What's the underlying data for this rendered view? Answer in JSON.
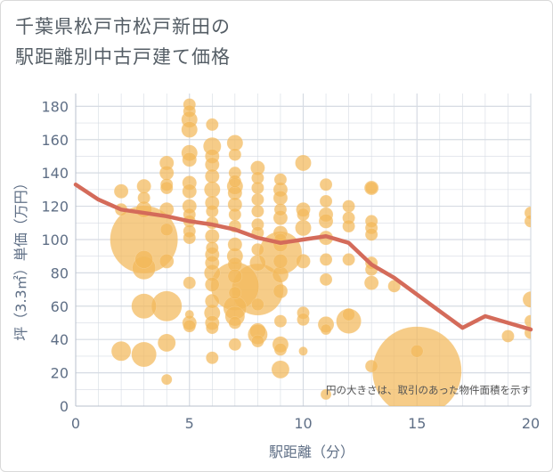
{
  "title": {
    "line1": "千葉県松戸市松戸新田の",
    "line2": "駅距離別中古戸建て価格"
  },
  "note": "円の大きさは、取引のあった物件面積を示す",
  "colors": {
    "bubble": "#f2b95a",
    "line": "#d46b5a",
    "grid": "#d6dbe3",
    "axis_text": "#5f6f86"
  },
  "chart_data": {
    "type": "scatter",
    "xlabel": "駅距離（分）",
    "ylabel": "坪（3.3㎡）単価（万円）",
    "xlim": [
      0,
      20
    ],
    "ylim": [
      0,
      185
    ],
    "xticks": [
      0,
      5,
      10,
      15,
      20
    ],
    "yticks": [
      0,
      20,
      40,
      60,
      80,
      100,
      120,
      140,
      160,
      180
    ],
    "grid": true,
    "series": [
      {
        "type": "bubble",
        "points": [
          {
            "x": 2,
            "y": 129,
            "r": 8
          },
          {
            "x": 2,
            "y": 118,
            "r": 7
          },
          {
            "x": 2,
            "y": 33,
            "r": 11
          },
          {
            "x": 3,
            "y": 132,
            "r": 8
          },
          {
            "x": 3,
            "y": 125,
            "r": 7
          },
          {
            "x": 3,
            "y": 118,
            "r": 9
          },
          {
            "x": 3,
            "y": 100,
            "r": 38
          },
          {
            "x": 3,
            "y": 88,
            "r": 10
          },
          {
            "x": 3,
            "y": 83,
            "r": 13
          },
          {
            "x": 3,
            "y": 60,
            "r": 14
          },
          {
            "x": 3,
            "y": 31,
            "r": 14
          },
          {
            "x": 4,
            "y": 146,
            "r": 8
          },
          {
            "x": 4,
            "y": 140,
            "r": 8
          },
          {
            "x": 4,
            "y": 133,
            "r": 7
          },
          {
            "x": 4,
            "y": 131,
            "r": 7
          },
          {
            "x": 4,
            "y": 118,
            "r": 8
          },
          {
            "x": 4,
            "y": 106,
            "r": 7
          },
          {
            "x": 4,
            "y": 87,
            "r": 8
          },
          {
            "x": 4,
            "y": 60,
            "r": 17
          },
          {
            "x": 4,
            "y": 38,
            "r": 10
          },
          {
            "x": 4,
            "y": 16,
            "r": 6
          },
          {
            "x": 5,
            "y": 181,
            "r": 7
          },
          {
            "x": 5,
            "y": 177,
            "r": 7
          },
          {
            "x": 5,
            "y": 172,
            "r": 9
          },
          {
            "x": 5,
            "y": 166,
            "r": 9
          },
          {
            "x": 5,
            "y": 152,
            "r": 9
          },
          {
            "x": 5,
            "y": 148,
            "r": 8
          },
          {
            "x": 5,
            "y": 134,
            "r": 8
          },
          {
            "x": 5,
            "y": 129,
            "r": 8
          },
          {
            "x": 5,
            "y": 120,
            "r": 8
          },
          {
            "x": 5,
            "y": 115,
            "r": 7
          },
          {
            "x": 5,
            "y": 111,
            "r": 7
          },
          {
            "x": 5,
            "y": 105,
            "r": 7
          },
          {
            "x": 5,
            "y": 101,
            "r": 7
          },
          {
            "x": 5,
            "y": 74,
            "r": 7
          },
          {
            "x": 5,
            "y": 55,
            "r": 5
          },
          {
            "x": 5,
            "y": 50,
            "r": 8
          },
          {
            "x": 5,
            "y": 48,
            "r": 7
          },
          {
            "x": 6,
            "y": 169,
            "r": 7
          },
          {
            "x": 6,
            "y": 156,
            "r": 10
          },
          {
            "x": 6,
            "y": 150,
            "r": 8
          },
          {
            "x": 6,
            "y": 145,
            "r": 8
          },
          {
            "x": 6,
            "y": 138,
            "r": 8
          },
          {
            "x": 6,
            "y": 130,
            "r": 9
          },
          {
            "x": 6,
            "y": 122,
            "r": 8
          },
          {
            "x": 6,
            "y": 117,
            "r": 7
          },
          {
            "x": 6,
            "y": 110,
            "r": 7
          },
          {
            "x": 6,
            "y": 102,
            "r": 8
          },
          {
            "x": 6,
            "y": 95,
            "r": 7
          },
          {
            "x": 6,
            "y": 91,
            "r": 8
          },
          {
            "x": 6,
            "y": 86,
            "r": 8
          },
          {
            "x": 6,
            "y": 80,
            "r": 9
          },
          {
            "x": 6,
            "y": 73,
            "r": 8
          },
          {
            "x": 6,
            "y": 63,
            "r": 8
          },
          {
            "x": 6,
            "y": 56,
            "r": 9
          },
          {
            "x": 6,
            "y": 50,
            "r": 8
          },
          {
            "x": 6,
            "y": 47,
            "r": 7
          },
          {
            "x": 6,
            "y": 29,
            "r": 7
          },
          {
            "x": 7,
            "y": 158,
            "r": 9
          },
          {
            "x": 7,
            "y": 151,
            "r": 7
          },
          {
            "x": 7,
            "y": 140,
            "r": 7
          },
          {
            "x": 7,
            "y": 135,
            "r": 7
          },
          {
            "x": 7,
            "y": 132,
            "r": 9
          },
          {
            "x": 7,
            "y": 128,
            "r": 8
          },
          {
            "x": 7,
            "y": 121,
            "r": 8
          },
          {
            "x": 7,
            "y": 115,
            "r": 7
          },
          {
            "x": 7,
            "y": 108,
            "r": 7
          },
          {
            "x": 7,
            "y": 97,
            "r": 8
          },
          {
            "x": 7,
            "y": 90,
            "r": 9
          },
          {
            "x": 7,
            "y": 85,
            "r": 8
          },
          {
            "x": 7,
            "y": 78,
            "r": 8
          },
          {
            "x": 7,
            "y": 72,
            "r": 27
          },
          {
            "x": 7,
            "y": 68,
            "r": 7
          },
          {
            "x": 7,
            "y": 59,
            "r": 13
          },
          {
            "x": 7,
            "y": 54,
            "r": 11
          },
          {
            "x": 7,
            "y": 50,
            "r": 7
          },
          {
            "x": 7,
            "y": 37,
            "r": 7
          },
          {
            "x": 8,
            "y": 143,
            "r": 8
          },
          {
            "x": 8,
            "y": 137,
            "r": 7
          },
          {
            "x": 8,
            "y": 131,
            "r": 7
          },
          {
            "x": 8,
            "y": 124,
            "r": 7
          },
          {
            "x": 8,
            "y": 117,
            "r": 7
          },
          {
            "x": 8,
            "y": 109,
            "r": 7
          },
          {
            "x": 8,
            "y": 104,
            "r": 7
          },
          {
            "x": 8,
            "y": 94,
            "r": 7
          },
          {
            "x": 8,
            "y": 86,
            "r": 9
          },
          {
            "x": 8,
            "y": 70,
            "r": 29
          },
          {
            "x": 8,
            "y": 61,
            "r": 7
          },
          {
            "x": 8,
            "y": 45,
            "r": 9
          },
          {
            "x": 8,
            "y": 43,
            "r": 11
          },
          {
            "x": 8,
            "y": 39,
            "r": 7
          },
          {
            "x": 9,
            "y": 136,
            "r": 7
          },
          {
            "x": 9,
            "y": 130,
            "r": 8
          },
          {
            "x": 9,
            "y": 125,
            "r": 8
          },
          {
            "x": 9,
            "y": 118,
            "r": 7
          },
          {
            "x": 9,
            "y": 113,
            "r": 8
          },
          {
            "x": 9,
            "y": 104,
            "r": 8
          },
          {
            "x": 9,
            "y": 100,
            "r": 7
          },
          {
            "x": 9,
            "y": 97,
            "r": 8
          },
          {
            "x": 9,
            "y": 92,
            "r": 24
          },
          {
            "x": 9,
            "y": 87,
            "r": 8
          },
          {
            "x": 9,
            "y": 79,
            "r": 9
          },
          {
            "x": 9,
            "y": 69,
            "r": 8
          },
          {
            "x": 9,
            "y": 51,
            "r": 7
          },
          {
            "x": 9,
            "y": 37,
            "r": 9
          },
          {
            "x": 9,
            "y": 34,
            "r": 7
          },
          {
            "x": 9,
            "y": 22,
            "r": 10
          },
          {
            "x": 10,
            "y": 146,
            "r": 9
          },
          {
            "x": 10,
            "y": 118,
            "r": 8
          },
          {
            "x": 10,
            "y": 115,
            "r": 7
          },
          {
            "x": 10,
            "y": 107,
            "r": 9
          },
          {
            "x": 10,
            "y": 87,
            "r": 8
          },
          {
            "x": 10,
            "y": 56,
            "r": 7
          },
          {
            "x": 10,
            "y": 52,
            "r": 7
          },
          {
            "x": 10,
            "y": 33,
            "r": 5
          },
          {
            "x": 11,
            "y": 133,
            "r": 7
          },
          {
            "x": 11,
            "y": 123,
            "r": 7
          },
          {
            "x": 11,
            "y": 115,
            "r": 8
          },
          {
            "x": 11,
            "y": 111,
            "r": 8
          },
          {
            "x": 11,
            "y": 101,
            "r": 8
          },
          {
            "x": 11,
            "y": 88,
            "r": 7
          },
          {
            "x": 11,
            "y": 76,
            "r": 7
          },
          {
            "x": 11,
            "y": 49,
            "r": 9
          },
          {
            "x": 11,
            "y": 46,
            "r": 6
          },
          {
            "x": 11,
            "y": 7,
            "r": 6
          },
          {
            "x": 12,
            "y": 120,
            "r": 7
          },
          {
            "x": 12,
            "y": 113,
            "r": 7
          },
          {
            "x": 12,
            "y": 108,
            "r": 7
          },
          {
            "x": 12,
            "y": 88,
            "r": 7
          },
          {
            "x": 12,
            "y": 55,
            "r": 7
          },
          {
            "x": 12,
            "y": 51,
            "r": 14
          },
          {
            "x": 13,
            "y": 131,
            "r": 8
          },
          {
            "x": 13,
            "y": 131,
            "r": 7
          },
          {
            "x": 13,
            "y": 111,
            "r": 7
          },
          {
            "x": 13,
            "y": 107,
            "r": 7
          },
          {
            "x": 13,
            "y": 103,
            "r": 7
          },
          {
            "x": 13,
            "y": 86,
            "r": 7
          },
          {
            "x": 13,
            "y": 82,
            "r": 7
          },
          {
            "x": 13,
            "y": 74,
            "r": 8
          },
          {
            "x": 13,
            "y": 24,
            "r": 7
          },
          {
            "x": 14,
            "y": 72,
            "r": 7
          },
          {
            "x": 15,
            "y": 21,
            "r": 50
          },
          {
            "x": 15,
            "y": 33,
            "r": 7
          },
          {
            "x": 19,
            "y": 42,
            "r": 7
          },
          {
            "x": 20,
            "y": 116,
            "r": 7
          },
          {
            "x": 20,
            "y": 111,
            "r": 7
          },
          {
            "x": 20,
            "y": 64,
            "r": 9
          },
          {
            "x": 20,
            "y": 51,
            "r": 7
          },
          {
            "x": 20,
            "y": 44,
            "r": 7
          }
        ]
      },
      {
        "type": "line",
        "x": [
          0,
          1,
          2,
          3,
          4,
          5,
          6,
          7,
          8,
          9,
          10,
          11,
          12,
          13,
          14,
          15,
          16,
          17,
          18,
          19,
          20
        ],
        "y": [
          133,
          124,
          118,
          116,
          114,
          111,
          109,
          106,
          101,
          98,
          100,
          102,
          98,
          85,
          77,
          67,
          57,
          47,
          54,
          50,
          46
        ]
      }
    ]
  }
}
